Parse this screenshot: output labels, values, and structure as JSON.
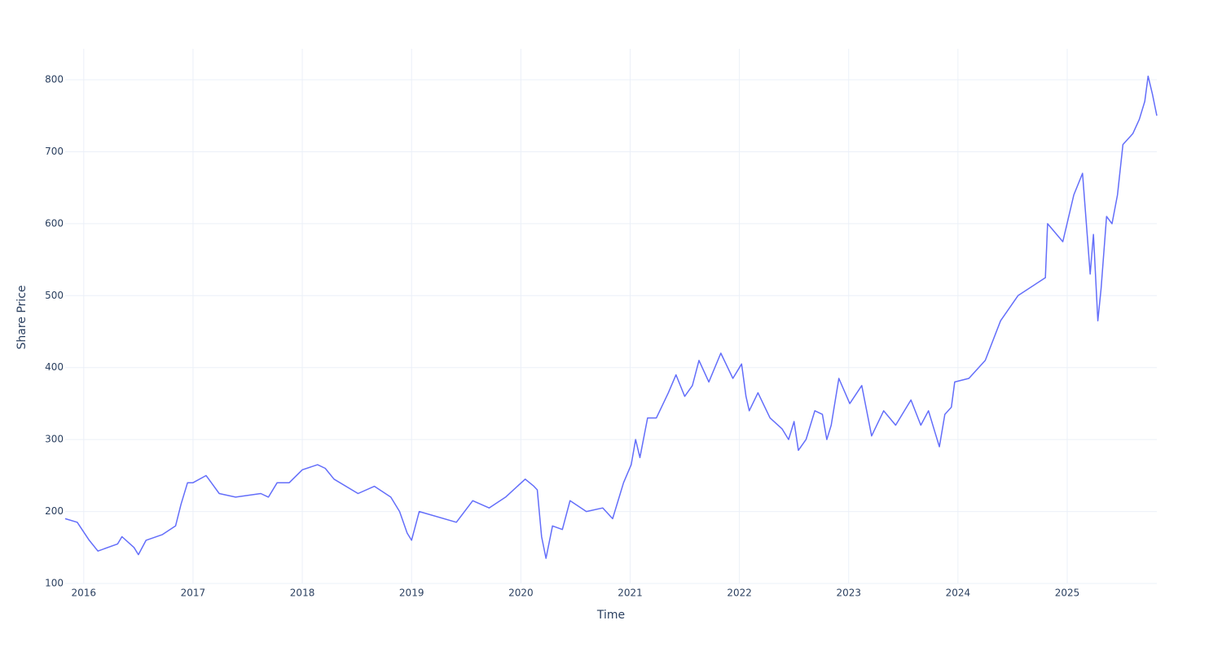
{
  "chart_data": {
    "type": "line",
    "x_label": "Time",
    "y_label": "Share Price",
    "x": [
      2015.83,
      2015.94,
      2016.05,
      2016.13,
      2016.31,
      2016.35,
      2016.46,
      2016.5,
      2016.57,
      2016.72,
      2016.84,
      2016.89,
      2016.95,
      2017.0,
      2017.12,
      2017.24,
      2017.39,
      2017.62,
      2017.69,
      2017.77,
      2017.88,
      2018.0,
      2018.14,
      2018.21,
      2018.29,
      2018.51,
      2018.66,
      2018.81,
      2018.89,
      2018.96,
      2019.0,
      2019.07,
      2019.41,
      2019.56,
      2019.71,
      2019.86,
      2020.04,
      2020.12,
      2020.15,
      2020.19,
      2020.23,
      2020.29,
      2020.38,
      2020.45,
      2020.6,
      2020.75,
      2020.84,
      2020.94,
      2021.01,
      2021.05,
      2021.09,
      2021.16,
      2021.24,
      2021.35,
      2021.42,
      2021.5,
      2021.57,
      2021.63,
      2021.72,
      2021.83,
      2021.94,
      2022.02,
      2022.06,
      2022.09,
      2022.17,
      2022.28,
      2022.39,
      2022.45,
      2022.5,
      2022.54,
      2022.61,
      2022.69,
      2022.76,
      2022.8,
      2022.84,
      2022.91,
      2023.01,
      2023.12,
      2023.21,
      2023.32,
      2023.43,
      2023.57,
      2023.66,
      2023.73,
      2023.79,
      2023.83,
      2023.88,
      2023.94,
      2023.97,
      2024.1,
      2024.25,
      2024.39,
      2024.55,
      2024.8,
      2024.82,
      2024.96,
      2025.06,
      2025.14,
      2025.21,
      2025.24,
      2025.28,
      2025.31,
      2025.36,
      2025.41,
      2025.46,
      2025.51,
      2025.6,
      2025.66,
      2025.71,
      2025.74,
      2025.78,
      2025.82
    ],
    "series": [
      {
        "name": "Share Price",
        "color": "#636efa",
        "values": [
          190,
          185,
          160,
          145,
          155,
          165,
          150,
          140,
          160,
          168,
          180,
          210,
          240,
          240,
          250,
          225,
          220,
          225,
          220,
          240,
          240,
          258,
          265,
          260,
          245,
          225,
          235,
          220,
          200,
          170,
          160,
          200,
          185,
          215,
          205,
          220,
          245,
          235,
          230,
          165,
          135,
          180,
          175,
          215,
          200,
          205,
          190,
          240,
          265,
          300,
          275,
          330,
          330,
          365,
          390,
          360,
          375,
          410,
          380,
          420,
          385,
          405,
          360,
          340,
          365,
          330,
          315,
          300,
          325,
          285,
          300,
          340,
          335,
          300,
          320,
          385,
          350,
          375,
          305,
          340,
          320,
          355,
          320,
          340,
          310,
          290,
          335,
          345,
          380,
          385,
          410,
          465,
          500,
          525,
          600,
          575,
          640,
          670,
          530,
          585,
          465,
          510,
          610,
          600,
          640,
          710,
          725,
          745,
          770,
          805,
          780,
          750
        ]
      }
    ],
    "xlim": [
      2015.83,
      2025.82
    ],
    "xticks": [
      2016,
      2017,
      2018,
      2019,
      2020,
      2021,
      2022,
      2023,
      2024,
      2025
    ],
    "ylim": [
      100,
      843
    ],
    "yticks": [
      100,
      200,
      300,
      400,
      500,
      600,
      700,
      800
    ],
    "grid": true
  }
}
